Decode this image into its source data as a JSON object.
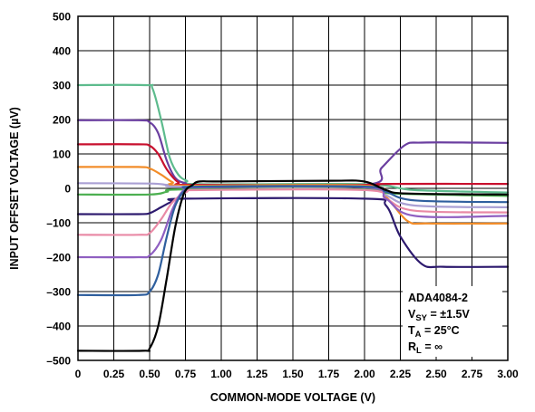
{
  "chart_data": {
    "type": "line",
    "xlabel": "COMMON-MODE VOLTAGE (V)",
    "ylabel": "INPUT OFFSET VOLTAGE (µV)",
    "xlim": [
      0,
      3.0
    ],
    "ylim": [
      -500,
      500
    ],
    "x_ticks": [
      "0",
      "0.25",
      "0.50",
      "0.75",
      "1.00",
      "1.25",
      "1.50",
      "1.75",
      "2.00",
      "2.25",
      "2.50",
      "2.75",
      "3.00"
    ],
    "y_ticks": [
      "500",
      "400",
      "300",
      "200",
      "100",
      "0",
      "–100",
      "–200",
      "–300",
      "–400",
      "–500"
    ],
    "grid": true,
    "annotation": {
      "device": "ADA4084-2",
      "vsy": {
        "main": "V",
        "sub": "SY",
        "rest": " = ±1.5V"
      },
      "ta": {
        "main": "T",
        "sub": "A",
        "rest": " = 25°C"
      },
      "rl": {
        "main": "R",
        "sub": "L",
        "rest": " = ∞"
      }
    },
    "series": [
      {
        "color": "#5dbb8d",
        "values": [
          [
            0,
            300
          ],
          [
            0.47,
            300
          ],
          [
            0.52,
            290
          ],
          [
            0.58,
            200
          ],
          [
            0.64,
            90
          ],
          [
            0.7,
            40
          ],
          [
            0.76,
            22
          ],
          [
            0.85,
            12
          ],
          [
            2.0,
            12
          ],
          [
            2.35,
            -5
          ],
          [
            3.0,
            -12
          ]
        ]
      },
      {
        "color": "#6b3fa0",
        "values": [
          [
            0,
            198
          ],
          [
            0.42,
            198
          ],
          [
            0.5,
            192
          ],
          [
            0.56,
            160
          ],
          [
            0.62,
            80
          ],
          [
            0.68,
            30
          ],
          [
            0.75,
            15
          ],
          [
            0.85,
            10
          ],
          [
            2.0,
            10
          ],
          [
            2.12,
            60
          ],
          [
            2.28,
            125
          ],
          [
            2.4,
            133
          ],
          [
            2.75,
            133
          ],
          [
            3.0,
            132
          ]
        ]
      },
      {
        "color": "#c8102e",
        "values": [
          [
            0,
            128
          ],
          [
            0.42,
            128
          ],
          [
            0.5,
            124
          ],
          [
            0.56,
            100
          ],
          [
            0.62,
            55
          ],
          [
            0.7,
            18
          ],
          [
            0.8,
            10
          ],
          [
            2.0,
            10
          ],
          [
            2.15,
            13
          ],
          [
            3.0,
            13
          ]
        ]
      },
      {
        "color": "#f28c28",
        "values": [
          [
            0,
            62
          ],
          [
            0.42,
            62
          ],
          [
            0.5,
            58
          ],
          [
            0.58,
            40
          ],
          [
            0.66,
            18
          ],
          [
            0.75,
            8
          ],
          [
            2.0,
            8
          ],
          [
            2.15,
            -25
          ],
          [
            2.3,
            -95
          ],
          [
            2.45,
            -102
          ],
          [
            3.0,
            -102
          ]
        ]
      },
      {
        "color": "#aaa0d4",
        "values": [
          [
            0,
            15
          ],
          [
            0.5,
            14
          ],
          [
            0.62,
            10
          ],
          [
            0.75,
            5
          ],
          [
            2.0,
            5
          ],
          [
            2.15,
            -20
          ],
          [
            2.35,
            -50
          ],
          [
            3.0,
            -55
          ]
        ]
      },
      {
        "color": "#4caf50",
        "values": [
          [
            0,
            -18
          ],
          [
            0.5,
            -18
          ],
          [
            0.62,
            -10
          ],
          [
            0.75,
            -3
          ],
          [
            2.0,
            -3
          ],
          [
            2.2,
            -15
          ],
          [
            3.0,
            -22
          ]
        ]
      },
      {
        "color": "#2d1a6e",
        "values": [
          [
            0,
            -75
          ],
          [
            0.42,
            -75
          ],
          [
            0.5,
            -72
          ],
          [
            0.58,
            -55
          ],
          [
            0.66,
            -38
          ],
          [
            0.75,
            -30
          ],
          [
            2.0,
            -30
          ],
          [
            2.15,
            -50
          ],
          [
            2.25,
            -140
          ],
          [
            2.4,
            -220
          ],
          [
            2.55,
            -228
          ],
          [
            3.0,
            -228
          ]
        ]
      },
      {
        "color": "#e98aa6",
        "values": [
          [
            0,
            -135
          ],
          [
            0.42,
            -135
          ],
          [
            0.5,
            -130
          ],
          [
            0.58,
            -90
          ],
          [
            0.66,
            -40
          ],
          [
            0.76,
            -10
          ],
          [
            0.85,
            -5
          ],
          [
            2.0,
            -5
          ],
          [
            2.15,
            -30
          ],
          [
            2.35,
            -65
          ],
          [
            3.0,
            -70
          ]
        ]
      },
      {
        "color": "#8f5fc1",
        "values": [
          [
            0,
            -200
          ],
          [
            0.42,
            -200
          ],
          [
            0.5,
            -195
          ],
          [
            0.58,
            -150
          ],
          [
            0.66,
            -60
          ],
          [
            0.74,
            -5
          ],
          [
            0.85,
            3
          ],
          [
            2.0,
            3
          ],
          [
            2.15,
            -30
          ],
          [
            2.35,
            -80
          ],
          [
            3.0,
            -80
          ]
        ]
      },
      {
        "color": "#2f5f9e",
        "values": [
          [
            0,
            -310
          ],
          [
            0.42,
            -310
          ],
          [
            0.5,
            -300
          ],
          [
            0.56,
            -250
          ],
          [
            0.62,
            -140
          ],
          [
            0.68,
            -50
          ],
          [
            0.75,
            -5
          ],
          [
            0.85,
            5
          ],
          [
            2.0,
            5
          ],
          [
            2.15,
            -10
          ],
          [
            2.35,
            -35
          ],
          [
            3.0,
            -40
          ]
        ]
      },
      {
        "color": "#000000",
        "values": [
          [
            0,
            -472
          ],
          [
            0.45,
            -472
          ],
          [
            0.5,
            -465
          ],
          [
            0.56,
            -400
          ],
          [
            0.62,
            -260
          ],
          [
            0.68,
            -110
          ],
          [
            0.74,
            -15
          ],
          [
            0.8,
            10
          ],
          [
            0.85,
            20
          ],
          [
            1.0,
            20
          ],
          [
            1.75,
            22
          ],
          [
            2.0,
            20
          ],
          [
            2.15,
            -5
          ],
          [
            2.3,
            -15
          ],
          [
            3.0,
            -18
          ]
        ]
      }
    ]
  }
}
